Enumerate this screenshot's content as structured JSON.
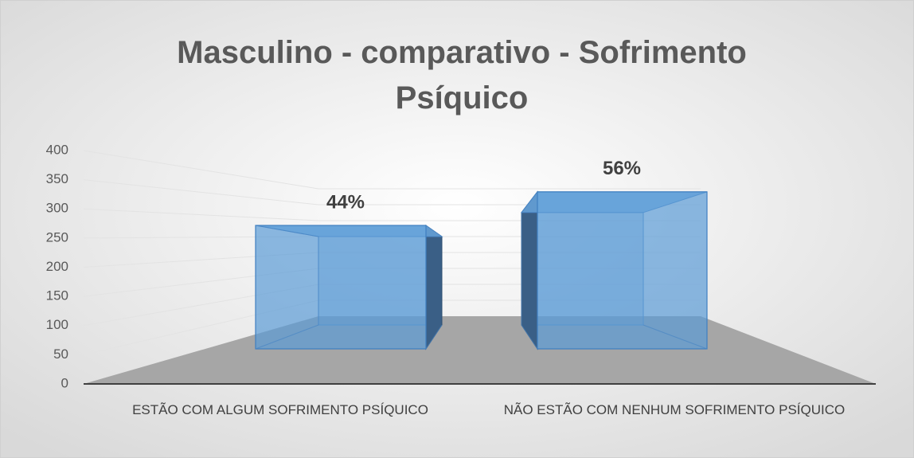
{
  "chart_data": {
    "type": "bar3d",
    "title": "Masculino - comparativo - Sofrimento Psíquico",
    "categories": [
      "ESTÃO COM ALGUM SOFRIMENTO PSÍQUICO",
      "NÃO ESTÃO COM NENHUM SOFRIMENTO PSÍQUICO"
    ],
    "values": [
      250,
      318
    ],
    "labels": [
      "44%",
      "56%"
    ],
    "color": "#5b9bd5",
    "ylim": [
      0,
      400
    ],
    "yticks": [
      0,
      50,
      100,
      150,
      200,
      250,
      300,
      350,
      400
    ],
    "grid": true
  }
}
